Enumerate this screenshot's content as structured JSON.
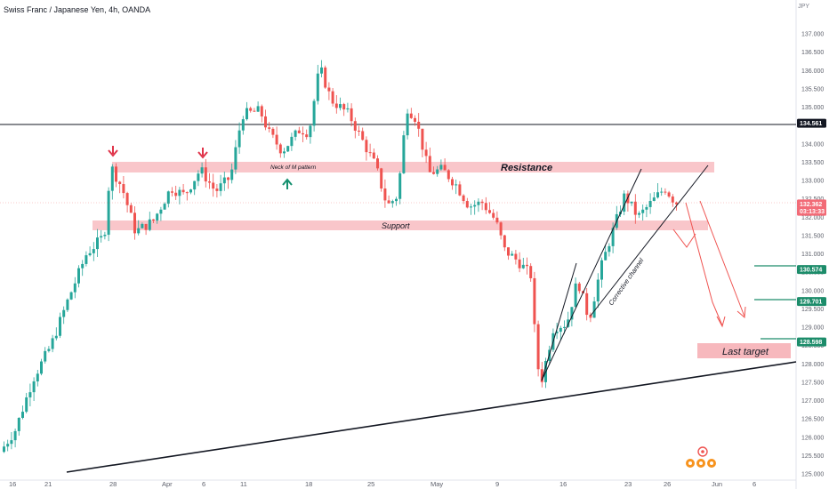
{
  "header": {
    "title": "Swiss Franc / Japanese Yen, 4h, OANDA",
    "unit": "JPY"
  },
  "colors": {
    "up": "#26a69a",
    "down": "#ef5350",
    "zone": "#f7b8bd",
    "arrow_red": "#e0344a",
    "arrow_green": "#15906f",
    "tag_green": "#1c8c6a",
    "tag_black": "#131722",
    "tag_red": "#f26b77"
  },
  "chart_data": {
    "type": "candlestick",
    "symbol": "CHFJPY",
    "timeframe": "4h",
    "broker": "OANDA",
    "ylim": [
      124.9,
      137.4
    ],
    "y_ticks": [
      "137.000",
      "136.500",
      "136.000",
      "135.500",
      "135.000",
      "134.500",
      "134.000",
      "133.500",
      "133.000",
      "132.500",
      "132.000",
      "131.500",
      "131.000",
      "130.500",
      "130.000",
      "129.500",
      "129.000",
      "128.500",
      "128.000",
      "127.500",
      "127.000",
      "126.500",
      "126.000",
      "125.500",
      "125.000"
    ],
    "x_ticks": [
      "16",
      "21",
      "28",
      "Apr",
      "6",
      "11",
      "18",
      "25",
      "May",
      "9",
      "16",
      "23",
      "26",
      "Jun",
      "6"
    ],
    "key_points": [
      {
        "label": "start",
        "price": 125.6
      },
      {
        "label": "Mar 28 spike",
        "price": 133.5
      },
      {
        "label": "Apr 20 top",
        "price": 136.2
      },
      {
        "label": "May 13 low",
        "price": 127.5
      },
      {
        "label": "last",
        "price": 132.362
      }
    ],
    "price_tags": [
      {
        "label": "134.561",
        "price": 134.561,
        "style": "black"
      },
      {
        "label": "132.362",
        "price": 132.362,
        "style": "red"
      },
      {
        "label": "03:13:33",
        "price": 132.16,
        "style": "red"
      },
      {
        "label": "130.574",
        "price": 130.574,
        "style": "green"
      },
      {
        "label": "129.701",
        "price": 129.701,
        "style": "green"
      },
      {
        "label": "128.598",
        "price": 128.598,
        "style": "green"
      }
    ],
    "horizontal_line": 134.561,
    "zones": [
      {
        "label": "Resistance",
        "low": 133.12,
        "high": 133.4
      },
      {
        "label": "Support",
        "low": 131.68,
        "high": 131.93
      }
    ],
    "target_box": {
      "label": "Last target",
      "low": 127.92,
      "high": 128.35
    },
    "annotations": [
      "Neck of M pattern",
      "Corrective channel"
    ]
  }
}
